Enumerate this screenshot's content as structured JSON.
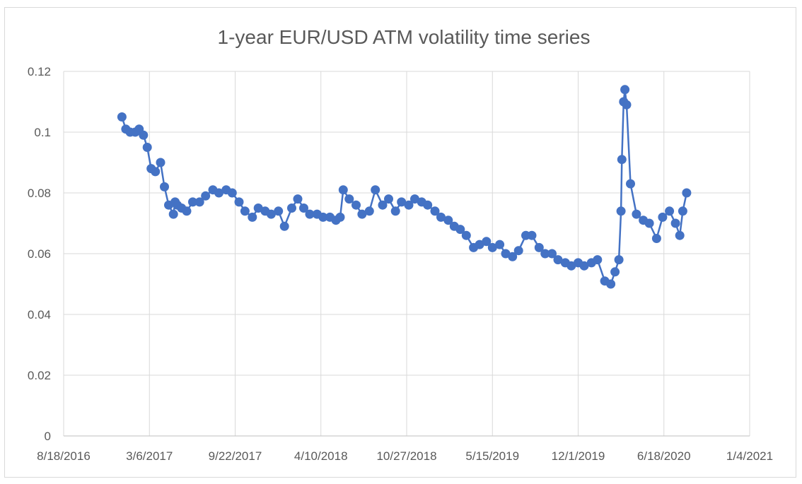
{
  "chart_data": {
    "type": "line",
    "title": "1-year EUR/USD ATM volatility time series",
    "xlabel": "",
    "ylabel": "",
    "x_ticks": [
      "8/18/2016",
      "3/6/2017",
      "9/22/2017",
      "4/10/2018",
      "10/27/2018",
      "5/15/2019",
      "12/1/2019",
      "6/18/2020",
      "1/4/2021"
    ],
    "y_ticks": [
      "0",
      "0.02",
      "0.04",
      "0.06",
      "0.08",
      "0.1",
      "0.12"
    ],
    "xlim": [
      "2016-08-18",
      "2021-01-04"
    ],
    "ylim": [
      0,
      0.12
    ],
    "grid": true,
    "legend": "none",
    "markers": true,
    "series": [
      {
        "name": "1-year EUR/USD ATM volatility",
        "color": "#4472c4",
        "x": [
          "2017-01-01",
          "2017-01-10",
          "2017-01-20",
          "2017-02-01",
          "2017-02-10",
          "2017-02-20",
          "2017-03-01",
          "2017-03-10",
          "2017-03-20",
          "2017-04-01",
          "2017-04-10",
          "2017-04-20",
          "2017-05-01",
          "2017-05-05",
          "2017-05-10",
          "2017-05-20",
          "2017-06-01",
          "2017-06-15",
          "2017-07-01",
          "2017-07-15",
          "2017-08-01",
          "2017-08-15",
          "2017-09-01",
          "2017-09-15",
          "2017-10-01",
          "2017-10-15",
          "2017-11-01",
          "2017-11-15",
          "2017-12-01",
          "2017-12-15",
          "2018-01-01",
          "2018-01-15",
          "2018-02-01",
          "2018-02-15",
          "2018-03-01",
          "2018-03-15",
          "2018-04-01",
          "2018-04-15",
          "2018-05-01",
          "2018-05-15",
          "2018-05-25",
          "2018-06-01",
          "2018-06-15",
          "2018-07-01",
          "2018-07-15",
          "2018-08-01",
          "2018-08-15",
          "2018-09-01",
          "2018-09-15",
          "2018-10-01",
          "2018-10-15",
          "2018-11-01",
          "2018-11-15",
          "2018-12-01",
          "2018-12-15",
          "2019-01-01",
          "2019-01-15",
          "2019-02-01",
          "2019-02-15",
          "2019-03-01",
          "2019-03-15",
          "2019-04-01",
          "2019-04-15",
          "2019-05-01",
          "2019-05-15",
          "2019-06-01",
          "2019-06-15",
          "2019-07-01",
          "2019-07-15",
          "2019-08-01",
          "2019-08-15",
          "2019-09-01",
          "2019-09-15",
          "2019-10-01",
          "2019-10-15",
          "2019-11-01",
          "2019-11-15",
          "2019-12-01",
          "2019-12-15",
          "2020-01-01",
          "2020-01-15",
          "2020-02-01",
          "2020-02-15",
          "2020-02-25",
          "2020-03-05",
          "2020-03-10",
          "2020-03-12",
          "2020-03-16",
          "2020-03-19",
          "2020-03-23",
          "2020-04-01",
          "2020-04-15",
          "2020-05-01",
          "2020-05-15",
          "2020-06-01",
          "2020-06-15",
          "2020-07-01",
          "2020-07-15",
          "2020-07-25",
          "2020-08-01",
          "2020-08-10"
        ],
        "values": [
          0.105,
          0.101,
          0.1,
          0.1,
          0.101,
          0.099,
          0.095,
          0.088,
          0.087,
          0.09,
          0.082,
          0.076,
          0.073,
          0.077,
          0.076,
          0.075,
          0.074,
          0.077,
          0.077,
          0.079,
          0.081,
          0.08,
          0.081,
          0.08,
          0.077,
          0.074,
          0.072,
          0.075,
          0.074,
          0.073,
          0.074,
          0.069,
          0.075,
          0.078,
          0.075,
          0.073,
          0.073,
          0.072,
          0.072,
          0.071,
          0.072,
          0.081,
          0.078,
          0.076,
          0.073,
          0.074,
          0.081,
          0.076,
          0.078,
          0.074,
          0.077,
          0.076,
          0.078,
          0.077,
          0.076,
          0.074,
          0.072,
          0.071,
          0.069,
          0.068,
          0.066,
          0.062,
          0.063,
          0.064,
          0.062,
          0.063,
          0.06,
          0.059,
          0.061,
          0.066,
          0.066,
          0.062,
          0.06,
          0.06,
          0.058,
          0.057,
          0.056,
          0.057,
          0.056,
          0.057,
          0.058,
          0.051,
          0.05,
          0.054,
          0.058,
          0.074,
          0.091,
          0.11,
          0.114,
          0.109,
          0.083,
          0.073,
          0.071,
          0.07,
          0.065,
          0.072,
          0.074,
          0.07,
          0.066,
          0.074,
          0.08
        ]
      }
    ]
  }
}
